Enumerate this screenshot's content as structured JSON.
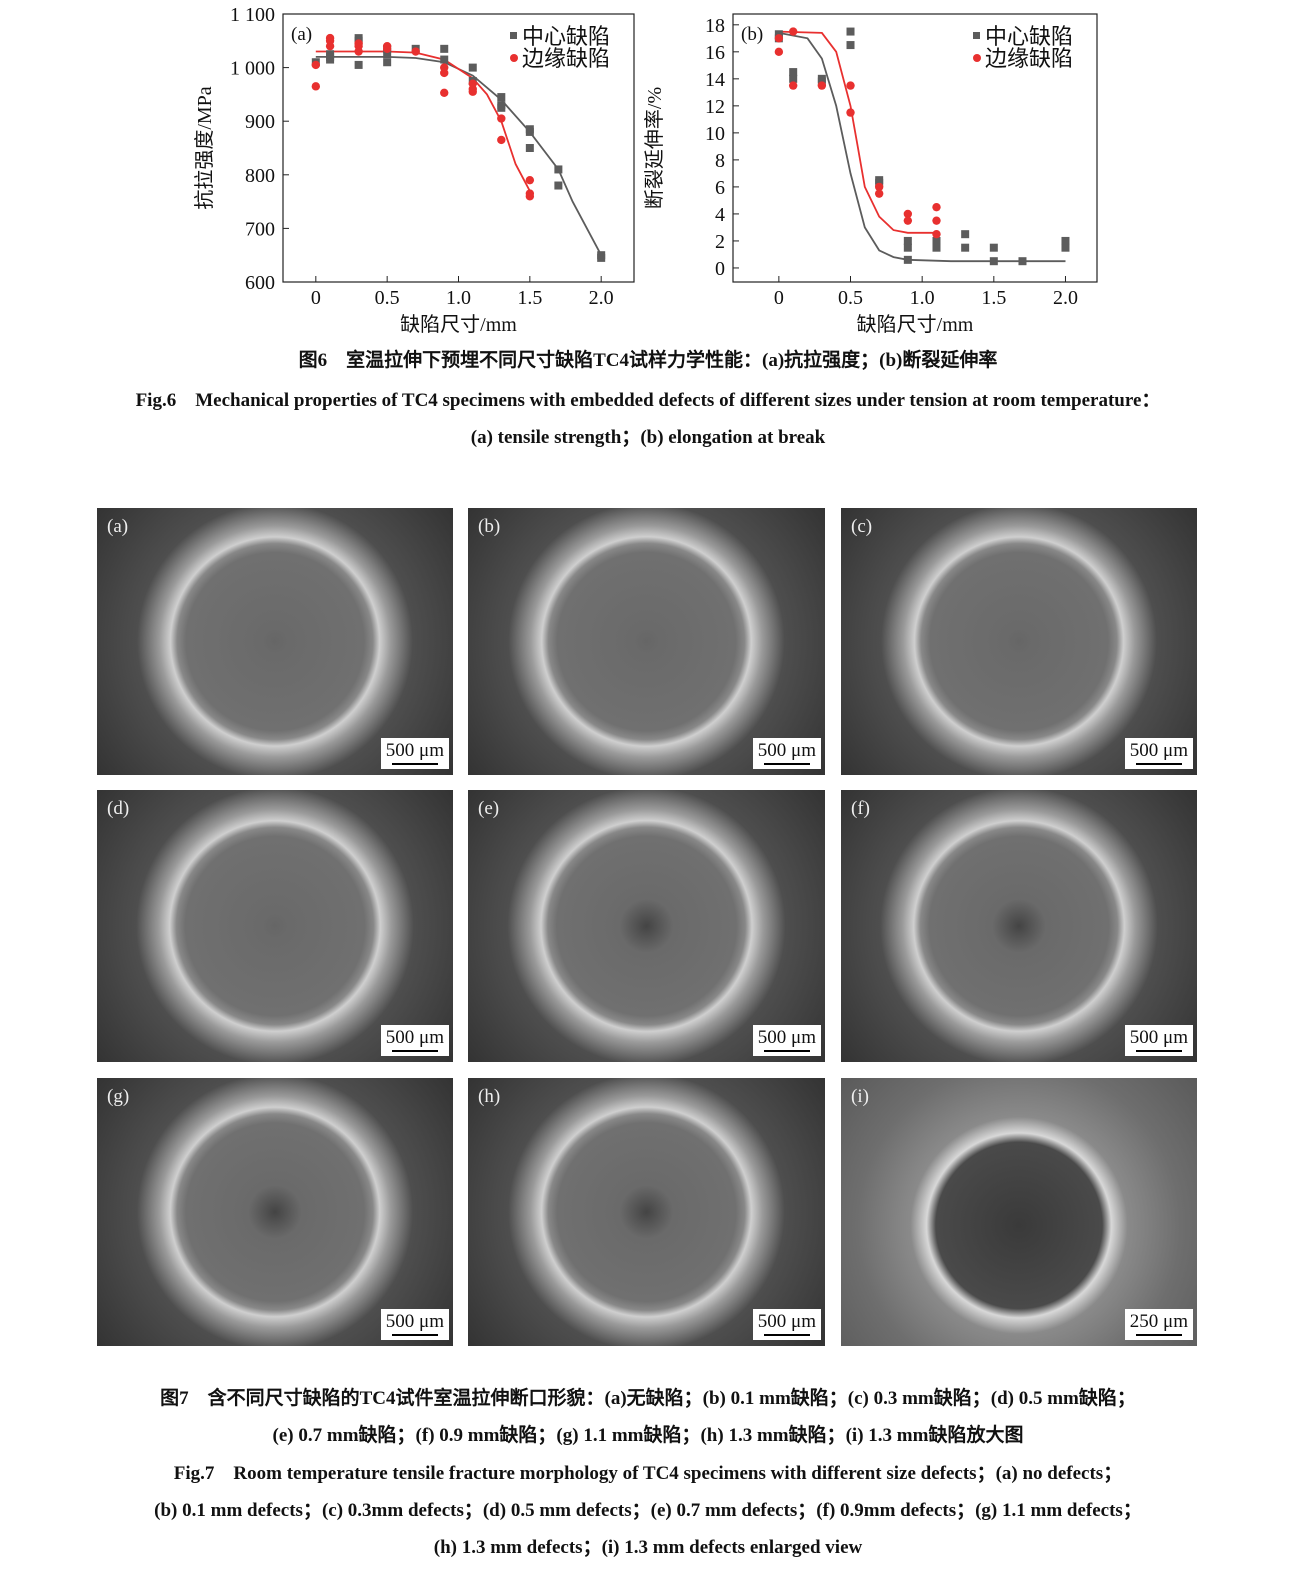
{
  "chart_data": [
    {
      "type": "scatter",
      "panel_label": "(a)",
      "x_label": "缺陷尺寸/mm",
      "y_label": "抗拉强度/MPa",
      "xlim": [
        -0.23,
        2.23
      ],
      "ylim": [
        600,
        1100
      ],
      "xticks": [
        0,
        0.5,
        {
          "value": 1,
          "label": "1.0"
        },
        1.5,
        {
          "value": 2,
          "label": "2.0"
        }
      ],
      "yticks": [
        600,
        700,
        800,
        900,
        {
          "value": 1000,
          "label": "1 000"
        },
        {
          "value": 1100,
          "label": "1 100"
        }
      ],
      "legend": "upper right",
      "series": [
        {
          "name": "中心缺陷",
          "color": "#5c5c5c",
          "mode": "markers",
          "marker": "square",
          "x": [
            0,
            0.1,
            0.1,
            0.1,
            0.3,
            0.3,
            0.3,
            0.5,
            0.5,
            0.5,
            0.7,
            0.9,
            0.9,
            1.1,
            1.1,
            1.3,
            1.3,
            1.3,
            1.5,
            1.5,
            1.5,
            1.7,
            1.7,
            2.0,
            2.0
          ],
          "values": [
            1010,
            1025,
            1020,
            1015,
            1055,
            1050,
            1005,
            1035,
            1025,
            1010,
            1035,
            1035,
            1015,
            1000,
            975,
            945,
            930,
            925,
            885,
            880,
            850,
            810,
            780,
            650,
            645
          ]
        },
        {
          "name": "边缘缺陷",
          "color": "#e8302f",
          "mode": "markers",
          "marker": "circle",
          "x": [
            0,
            0,
            0.1,
            0.1,
            0.1,
            0.3,
            0.3,
            0.3,
            0.5,
            0.5,
            0.7,
            0.9,
            0.9,
            0.9,
            1.1,
            1.1,
            1.1,
            1.3,
            1.3,
            1.5,
            1.5,
            1.5
          ],
          "values": [
            1005,
            965,
            1055,
            1050,
            1040,
            1045,
            1040,
            1030,
            1040,
            1035,
            1030,
            1000,
            990,
            953,
            970,
            960,
            955,
            905,
            865,
            790,
            765,
            760
          ]
        },
        {
          "color": "#5c5c5c",
          "mode": "line",
          "x": [
            0,
            0.5,
            0.7,
            0.9,
            1.1,
            1.3,
            1.5,
            1.7,
            1.8,
            2.0
          ],
          "values": [
            1020,
            1020,
            1018,
            1010,
            985,
            940,
            880,
            810,
            750,
            650
          ]
        },
        {
          "color": "#e8302f",
          "mode": "line",
          "x": [
            0,
            0.5,
            0.7,
            0.9,
            1.1,
            1.2,
            1.3,
            1.4,
            1.5
          ],
          "values": [
            1030,
            1030,
            1028,
            1015,
            980,
            950,
            900,
            820,
            770
          ]
        }
      ]
    },
    {
      "type": "scatter",
      "panel_label": "(b)",
      "x_label": "缺陷尺寸/mm",
      "y_label": "断裂延伸率/%",
      "xlim": [
        -0.32,
        2.22
      ],
      "ylim": [
        -1.04,
        18.8
      ],
      "xticks": [
        0,
        0.5,
        {
          "value": 1,
          "label": "1.0"
        },
        1.5,
        {
          "value": 2,
          "label": "2.0"
        }
      ],
      "yticks": [
        0,
        2,
        4,
        6,
        8,
        10,
        12,
        14,
        16,
        18
      ],
      "legend": "upper right",
      "series": [
        {
          "name": "中心缺陷",
          "color": "#5c5c5c",
          "mode": "markers",
          "marker": "square",
          "x": [
            0,
            0,
            0.1,
            0.1,
            0.3,
            0.3,
            0.5,
            0.5,
            0.7,
            0.7,
            0.9,
            0.9,
            0.9,
            1.1,
            1.1,
            1.3,
            1.3,
            1.5,
            1.5,
            1.7,
            2.0,
            2.0
          ],
          "values": [
            17.3,
            17,
            14.5,
            14,
            14,
            13.8,
            17.5,
            16.5,
            6.5,
            6.3,
            2,
            1.5,
            0.6,
            2,
            1.5,
            2.5,
            1.5,
            1.5,
            0.5,
            0.5,
            2,
            1.5
          ]
        },
        {
          "name": "边缘缺陷",
          "color": "#e8302f",
          "mode": "markers",
          "marker": "circle",
          "x": [
            0,
            0,
            0.1,
            0.1,
            0.3,
            0.5,
            0.5,
            0.7,
            0.7,
            0.9,
            0.9,
            1.1,
            1.1,
            1.1
          ],
          "values": [
            17,
            16,
            17.5,
            13.5,
            13.5,
            13.5,
            11.5,
            6,
            5.5,
            4,
            3.5,
            4.5,
            3.5,
            2.5
          ]
        },
        {
          "color": "#5c5c5c",
          "mode": "line",
          "x": [
            0,
            0.2,
            0.3,
            0.4,
            0.5,
            0.6,
            0.7,
            0.8,
            0.9,
            1.2,
            2.0
          ],
          "values": [
            17.4,
            17,
            15.5,
            12,
            7,
            3,
            1.3,
            0.8,
            0.6,
            0.5,
            0.5
          ]
        },
        {
          "color": "#e8302f",
          "mode": "line",
          "x": [
            0,
            0.3,
            0.4,
            0.5,
            0.55,
            0.6,
            0.7,
            0.8,
            0.9,
            1.1
          ],
          "values": [
            17.5,
            17.4,
            16,
            12,
            9,
            6,
            3.8,
            2.8,
            2.6,
            2.6
          ]
        }
      ]
    }
  ],
  "figure6": {
    "caption_cn": "图6　室温拉伸下预埋不同尺寸缺陷TC4试样力学性能：(a)抗拉强度；(b)断裂延伸率",
    "caption_en": [
      "Fig.6　Mechanical properties of TC4 specimens with embedded defects of different sizes under tension at room temperature：",
      "(a) tensile strength；(b) elongation at break"
    ]
  },
  "figure7": {
    "panels": [
      {
        "label": "(a)",
        "scale": "500 μm"
      },
      {
        "label": "(b)",
        "scale": "500 μm"
      },
      {
        "label": "(c)",
        "scale": "500 μm"
      },
      {
        "label": "(d)",
        "scale": "500 μm"
      },
      {
        "label": "(e)",
        "scale": "500 μm"
      },
      {
        "label": "(f)",
        "scale": "500 μm"
      },
      {
        "label": "(g)",
        "scale": "500 μm"
      },
      {
        "label": "(h)",
        "scale": "500 μm"
      },
      {
        "label": "(i)",
        "scale": "250 μm"
      }
    ],
    "caption_cn": [
      "图7　含不同尺寸缺陷的TC4试件室温拉伸断口形貌：(a)无缺陷；(b) 0.1 mm缺陷；(c) 0.3 mm缺陷；(d) 0.5 mm缺陷；",
      "(e) 0.7 mm缺陷；(f) 0.9 mm缺陷；(g) 1.1 mm缺陷；(h) 1.3 mm缺陷；(i) 1.3 mm缺陷放大图"
    ],
    "caption_en": [
      "Fig.7　Room temperature tensile fracture morphology of TC4 specimens with different size defects；(a) no defects；",
      "(b) 0.1 mm defects；(c) 0.3mm defects；(d) 0.5 mm defects；(e) 0.7 mm defects；(f) 0.9mm defects；(g) 1.1 mm defects；",
      "(h) 1.3 mm defects；(i) 1.3 mm defects enlarged view"
    ]
  }
}
